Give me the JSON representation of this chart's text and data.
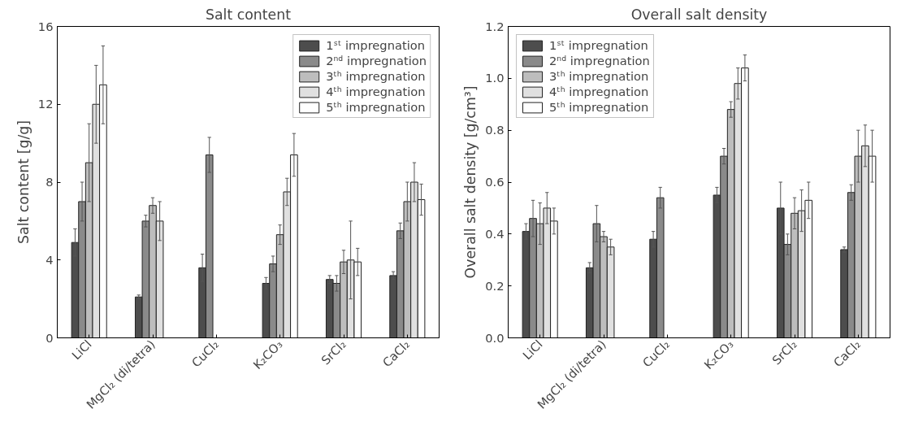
{
  "chart_data": [
    {
      "type": "bar",
      "title": "Salt content",
      "ylabel": "Salt content [g/g]",
      "categories": [
        "LiCl",
        "MgCl₂ (di/tetra)",
        "CuCl₂",
        "K₂CO₃",
        "SrCl₂",
        "CaCl₂"
      ],
      "ylim": [
        0,
        16
      ],
      "yticks": [
        0,
        4,
        8,
        12,
        16
      ],
      "grid": false,
      "legend": "top right",
      "series": [
        {
          "name": "1ˢᵗ impregnation",
          "color": "#4d4d4d",
          "values": [
            4.9,
            2.1,
            3.6,
            2.8,
            3.0,
            3.2
          ],
          "errors": [
            0.7,
            0.1,
            0.7,
            0.3,
            0.2,
            0.2
          ]
        },
        {
          "name": "2ⁿᵈ impregnation",
          "color": "#8a8a8a",
          "values": [
            7.0,
            6.0,
            9.4,
            3.8,
            2.8,
            5.5
          ],
          "errors": [
            1.0,
            0.3,
            0.9,
            0.4,
            0.4,
            0.4
          ]
        },
        {
          "name": "3ᵗʰ impregnation",
          "color": "#bdbdbd",
          "values": [
            9.0,
            6.8,
            null,
            5.3,
            3.9,
            7.0
          ],
          "errors": [
            2.0,
            0.4,
            null,
            0.5,
            0.6,
            1.0
          ]
        },
        {
          "name": "4ᵗʰ impregnation",
          "color": "#e0e0e0",
          "values": [
            12.0,
            6.0,
            null,
            7.5,
            4.0,
            8.0
          ],
          "errors": [
            2.0,
            1.0,
            null,
            0.7,
            2.0,
            1.0
          ]
        },
        {
          "name": "5ᵗʰ impregnation",
          "color": "#ffffff",
          "values": [
            13.0,
            null,
            null,
            9.4,
            3.9,
            7.1
          ],
          "errors": [
            2.0,
            null,
            null,
            1.1,
            0.7,
            0.8
          ]
        }
      ]
    },
    {
      "type": "bar",
      "title": "Overall salt density",
      "ylabel": "Overall salt density [g/cm³]",
      "categories": [
        "LiCl",
        "MgCl₂ (di/tetra)",
        "CuCl₂",
        "K₂CO₃",
        "SrCl₂",
        "CaCl₂"
      ],
      "ylim": [
        0,
        1.2
      ],
      "yticks": [
        {
          "value": 0,
          "label": "0.0"
        },
        0.2,
        0.4,
        0.6,
        0.8,
        {
          "value": 1,
          "label": "1.0"
        },
        1.2
      ],
      "grid": false,
      "legend": "top left",
      "series": [
        {
          "name": "1ˢᵗ impregnation",
          "color": "#4d4d4d",
          "values": [
            0.41,
            0.27,
            0.38,
            0.55,
            0.5,
            0.34
          ],
          "errors": [
            0.03,
            0.02,
            0.03,
            0.03,
            0.1,
            0.01
          ]
        },
        {
          "name": "2ⁿᵈ impregnation",
          "color": "#8a8a8a",
          "values": [
            0.46,
            0.44,
            0.54,
            0.7,
            0.36,
            0.56
          ],
          "errors": [
            0.07,
            0.07,
            0.04,
            0.03,
            0.04,
            0.03
          ]
        },
        {
          "name": "3ᵗʰ impregnation",
          "color": "#bdbdbd",
          "values": [
            0.44,
            0.39,
            null,
            0.88,
            0.48,
            0.7
          ],
          "errors": [
            0.08,
            0.02,
            null,
            0.03,
            0.06,
            0.1
          ]
        },
        {
          "name": "4ᵗʰ impregnation",
          "color": "#e0e0e0",
          "values": [
            0.5,
            0.35,
            null,
            0.98,
            0.49,
            0.74
          ],
          "errors": [
            0.06,
            0.03,
            null,
            0.06,
            0.08,
            0.08
          ]
        },
        {
          "name": "5ᵗʰ impregnation",
          "color": "#ffffff",
          "values": [
            0.45,
            null,
            null,
            1.04,
            0.53,
            0.7
          ],
          "errors": [
            0.05,
            null,
            null,
            0.05,
            0.07,
            0.1
          ]
        }
      ]
    }
  ]
}
